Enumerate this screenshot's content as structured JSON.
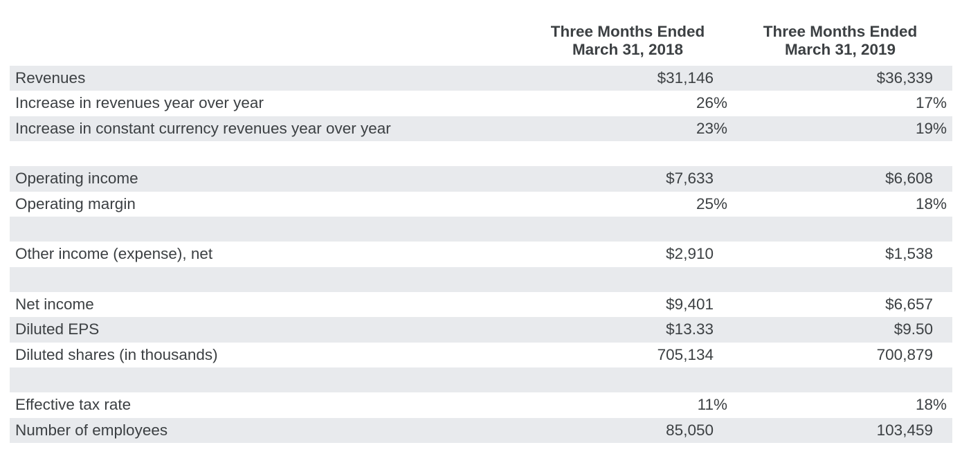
{
  "colors": {
    "background": "#ffffff",
    "row_shade": "#e8eaed",
    "text": "#3c4043"
  },
  "chart_data": {
    "type": "table",
    "title": "",
    "legend": "none",
    "grid": "alternating-row-shading",
    "headers": [
      {
        "line1": "Three Months Ended",
        "line2": "March 31, 2018"
      },
      {
        "line1": "Three Months Ended",
        "line2": "March 31, 2019"
      }
    ],
    "rows": [
      {
        "label": "Revenues",
        "v2018": "$31,146",
        "v2019": "$36,339",
        "shaded": true,
        "spacer": false
      },
      {
        "label": "Increase in revenues year over year",
        "v2018": "26%",
        "v2019": "17%",
        "shaded": false,
        "spacer": false
      },
      {
        "label": "Increase in constant currency revenues year over year",
        "v2018": "23%",
        "v2019": "19%",
        "shaded": true,
        "spacer": false
      },
      {
        "label": "",
        "v2018": "",
        "v2019": "",
        "shaded": false,
        "spacer": true
      },
      {
        "label": "Operating income",
        "v2018": "$7,633",
        "v2019": "$6,608",
        "shaded": true,
        "spacer": false
      },
      {
        "label": "Operating margin",
        "v2018": "25%",
        "v2019": "18%",
        "shaded": false,
        "spacer": false
      },
      {
        "label": "",
        "v2018": "",
        "v2019": "",
        "shaded": true,
        "spacer": true
      },
      {
        "label": "Other income (expense), net",
        "v2018": "$2,910",
        "v2019": "$1,538",
        "shaded": false,
        "spacer": false
      },
      {
        "label": "",
        "v2018": "",
        "v2019": "",
        "shaded": true,
        "spacer": true
      },
      {
        "label": "Net income",
        "v2018": "$9,401",
        "v2019": "$6,657",
        "shaded": false,
        "spacer": false
      },
      {
        "label": "Diluted EPS",
        "v2018": "$13.33",
        "v2019": "$9.50",
        "shaded": true,
        "spacer": false
      },
      {
        "label": "Diluted shares (in thousands)",
        "v2018": "705,134",
        "v2019": "700,879",
        "shaded": false,
        "spacer": false
      },
      {
        "label": "",
        "v2018": "",
        "v2019": "",
        "shaded": true,
        "spacer": true
      },
      {
        "label": "Effective tax rate",
        "v2018": "11%",
        "v2019": "18%",
        "shaded": false,
        "spacer": false
      },
      {
        "label": "Number of employees",
        "v2018": "85,050",
        "v2019": "103,459",
        "shaded": true,
        "spacer": false
      }
    ]
  }
}
